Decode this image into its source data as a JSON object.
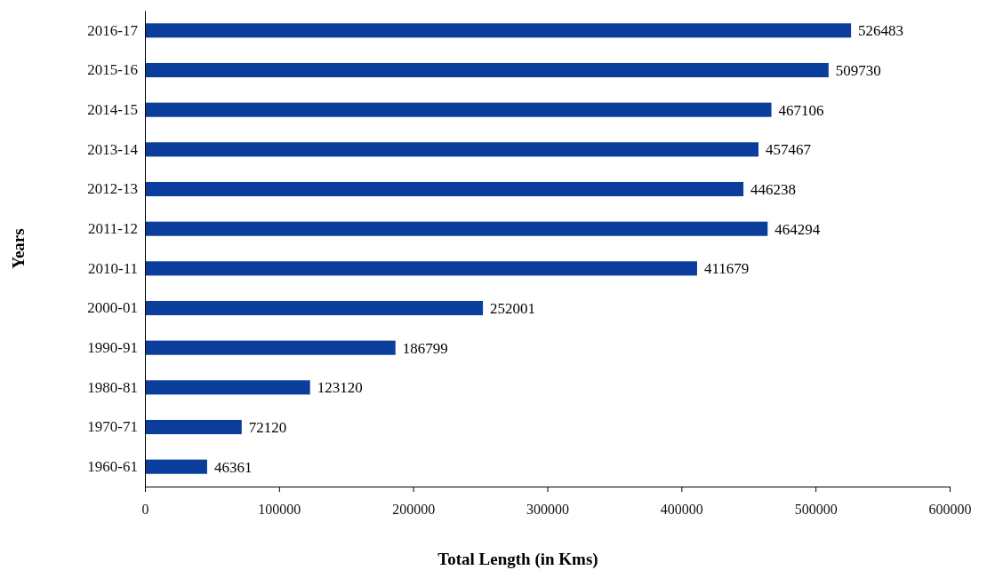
{
  "chart_data": {
    "type": "bar",
    "orientation": "horizontal",
    "xlabel": "Total Length (in Kms)",
    "ylabel": "Years",
    "categories": [
      "2016-17",
      "2015-16",
      "2014-15",
      "2013-14",
      "2012-13",
      "2011-12",
      "2010-11",
      "2000-01",
      "1990-91",
      "1980-81",
      "1970-71",
      "1960-61"
    ],
    "values": [
      526483,
      509730,
      467106,
      457467,
      446238,
      464294,
      411679,
      252001,
      186799,
      123120,
      72120,
      46361
    ],
    "color": "#0b3d9c",
    "xlim": [
      0,
      600000
    ],
    "xticks": [
      0,
      100000,
      200000,
      300000,
      400000,
      500000,
      600000
    ],
    "data_labels": true,
    "grid": false
  }
}
